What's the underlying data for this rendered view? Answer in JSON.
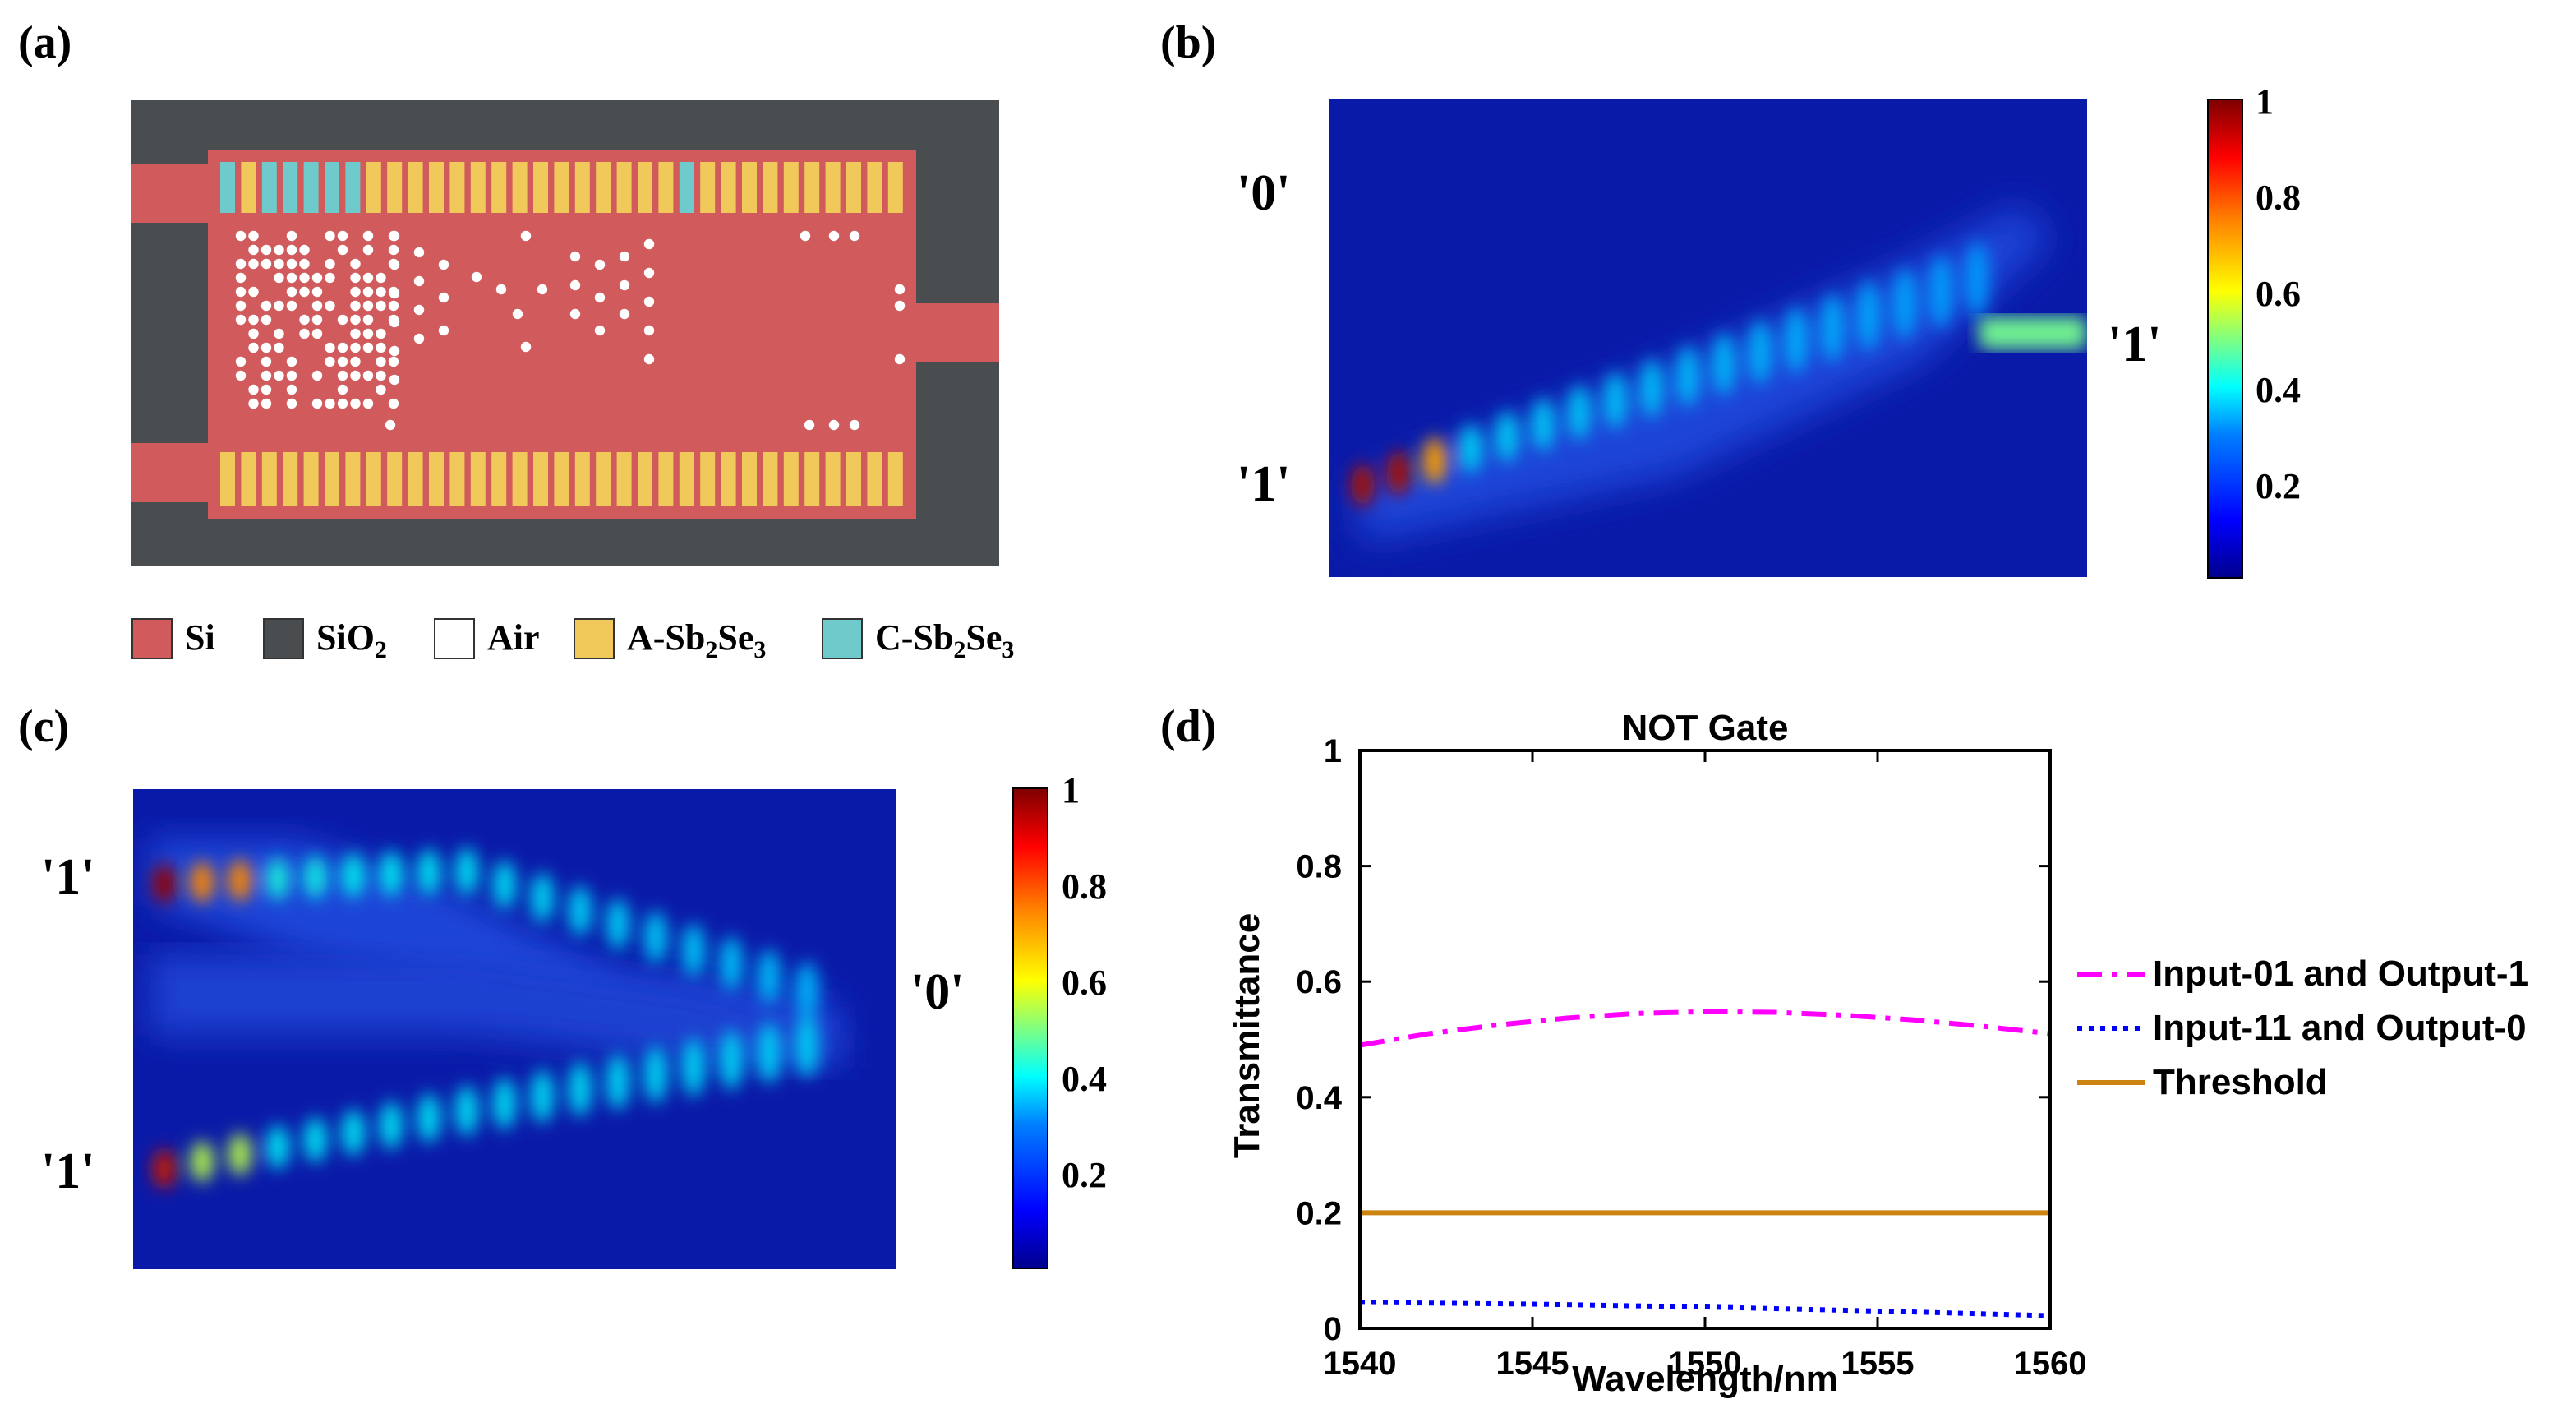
{
  "panels": {
    "a": "(a)",
    "b": "(b)",
    "c": "(c)",
    "d": "(d)"
  },
  "device_legend": [
    {
      "name": "Si",
      "color": "#d05a5c"
    },
    {
      "name": "SiO",
      "sub": "2",
      "color": "#4a4d4f"
    },
    {
      "name": "Air",
      "color": "#ffffff"
    },
    {
      "name": "A-Sb",
      "sub": "2",
      "name2": "Se",
      "sub2": "3",
      "color": "#f0c95a"
    },
    {
      "name": "C-Sb",
      "sub": "2",
      "name2": "Se",
      "sub2": "3",
      "color": "#6fcbcb"
    }
  ],
  "field_b": {
    "input_label": "'0'",
    "input_label2": "'1'",
    "output_label": "'1'"
  },
  "field_c": {
    "input_label": "'1'",
    "input_label2": "'1'",
    "output_label": "'0'"
  },
  "colorbar_ticks": [
    "1",
    "0.8",
    "0.6",
    "0.4",
    "0.2"
  ],
  "chart_data": {
    "type": "line",
    "title": "NOT Gate",
    "xlabel": "Wavelength/nm",
    "ylabel": "Transmittance",
    "xlim": [
      1540,
      1560
    ],
    "ylim": [
      0,
      1
    ],
    "xticks": [
      1540,
      1545,
      1550,
      1555,
      1560
    ],
    "yticks": [
      0,
      0.2,
      0.4,
      0.6,
      0.8,
      1
    ],
    "ytick_labels": [
      "0",
      "0.2",
      "0.4",
      "0.6",
      "0.8",
      "1"
    ],
    "series": [
      {
        "name": "Input-01 and Output-1",
        "color": "#ff00ff",
        "style": "dashdot",
        "x": [
          1540,
          1542,
          1544,
          1546,
          1548,
          1550,
          1552,
          1554,
          1556,
          1558,
          1560
        ],
        "y": [
          0.49,
          0.51,
          0.525,
          0.537,
          0.545,
          0.548,
          0.547,
          0.542,
          0.534,
          0.523,
          0.51
        ]
      },
      {
        "name": "Input-11 and Output-0",
        "color": "#0000ff",
        "style": "dotted",
        "x": [
          1540,
          1545,
          1550,
          1555,
          1560
        ],
        "y": [
          0.045,
          0.042,
          0.037,
          0.03,
          0.022
        ]
      },
      {
        "name": "Threshold",
        "color": "#cc8410",
        "style": "solid",
        "x": [
          1540,
          1560
        ],
        "y": [
          0.2,
          0.2
        ]
      }
    ]
  }
}
